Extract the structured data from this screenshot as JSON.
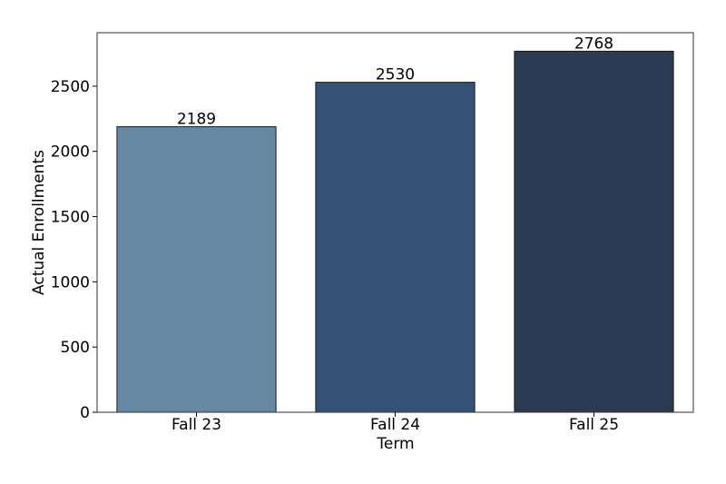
{
  "chart_data": {
    "type": "bar",
    "x_label": "Term",
    "y_label": "Actual Enrollments",
    "categories": [
      "Fall 23",
      "Fall 24",
      "Fall 25"
    ],
    "values": [
      2189,
      2530,
      2768
    ],
    "colors": [
      "#6788a5",
      "#355176",
      "#283b53"
    ],
    "ylim": [
      0,
      2910
    ],
    "yticks": [
      0,
      500,
      1000,
      1500,
      2000,
      2500
    ],
    "grid": false
  }
}
